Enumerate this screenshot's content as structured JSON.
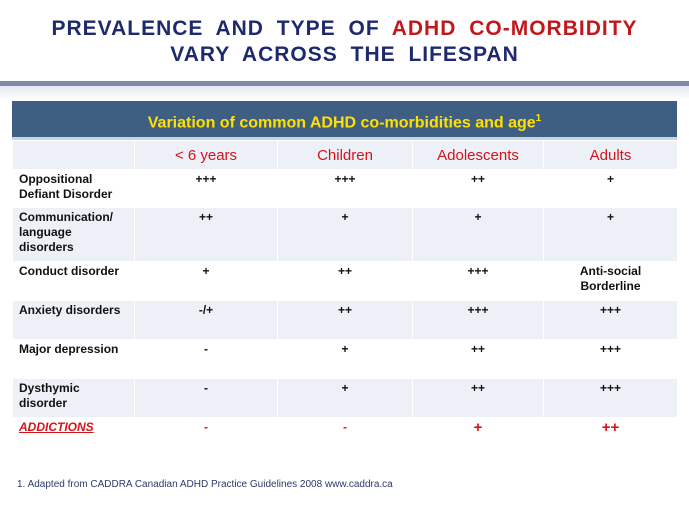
{
  "title": {
    "line1_pre": "PREVALENCE AND TYPE OF",
    "line1_accent": "ADHD CO-MORBIDITY",
    "line2": "VARY ACROSS THE LIFESPAN"
  },
  "banner": {
    "text": "Variation of common ADHD co-morbidities and age",
    "sup": "1"
  },
  "columns": [
    "< 6 years",
    "Children",
    "Adolescents",
    "Adults"
  ],
  "rows": [
    {
      "label": "Oppositional Defiant Disorder",
      "values": [
        "+++",
        "+++",
        "++",
        "+"
      ]
    },
    {
      "label": "Communication/ language disorders",
      "values": [
        "++",
        "+",
        "+",
        "+"
      ]
    },
    {
      "label": "Conduct disorder",
      "values": [
        "+",
        "++",
        "+++",
        "Anti-social Borderline"
      ]
    },
    {
      "label": "Anxiety disorders",
      "values": [
        "-/+",
        "++",
        "+++",
        "+++"
      ]
    },
    {
      "label": "Major depression",
      "values": [
        "-",
        "+",
        "++",
        "+++"
      ]
    },
    {
      "label": "Dysthymic disorder",
      "values": [
        "-",
        "+",
        "++",
        "+++"
      ]
    },
    {
      "label": "ADDICTIONS",
      "values": [
        "-",
        "-",
        "+",
        "++"
      ]
    }
  ],
  "footnote": "1. Adapted from CADDRA Canadian ADHD Practice Guidelines 2008 www.caddra.ca",
  "colors": {
    "title": "#1f2a6e",
    "accent": "#c0181c",
    "banner_bg": "#3f5f82",
    "banner_text": "#ffe000"
  }
}
